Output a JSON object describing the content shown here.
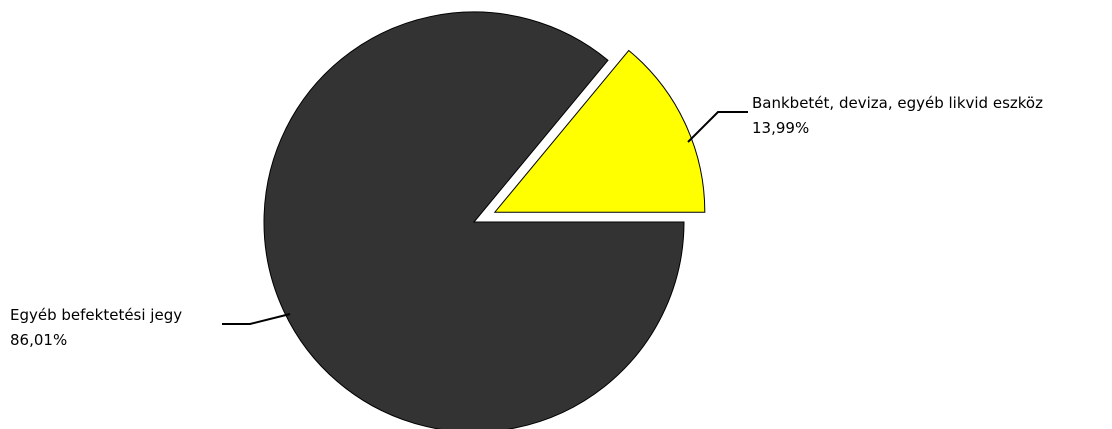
{
  "chart_data": {
    "type": "pie",
    "slices": [
      {
        "label": "Bankbetét, deviza, egyéb likvid eszköz",
        "value": 13.99,
        "value_label": "13,99%",
        "color": "#ffff00",
        "exploded": true
      },
      {
        "label": "Egyéb befektetési jegy",
        "value": 86.01,
        "value_label": "86,01%",
        "color": "#333333",
        "exploded": false
      }
    ],
    "start_angle_deg": 0,
    "direction": "counterclockwise",
    "legend": "none"
  }
}
